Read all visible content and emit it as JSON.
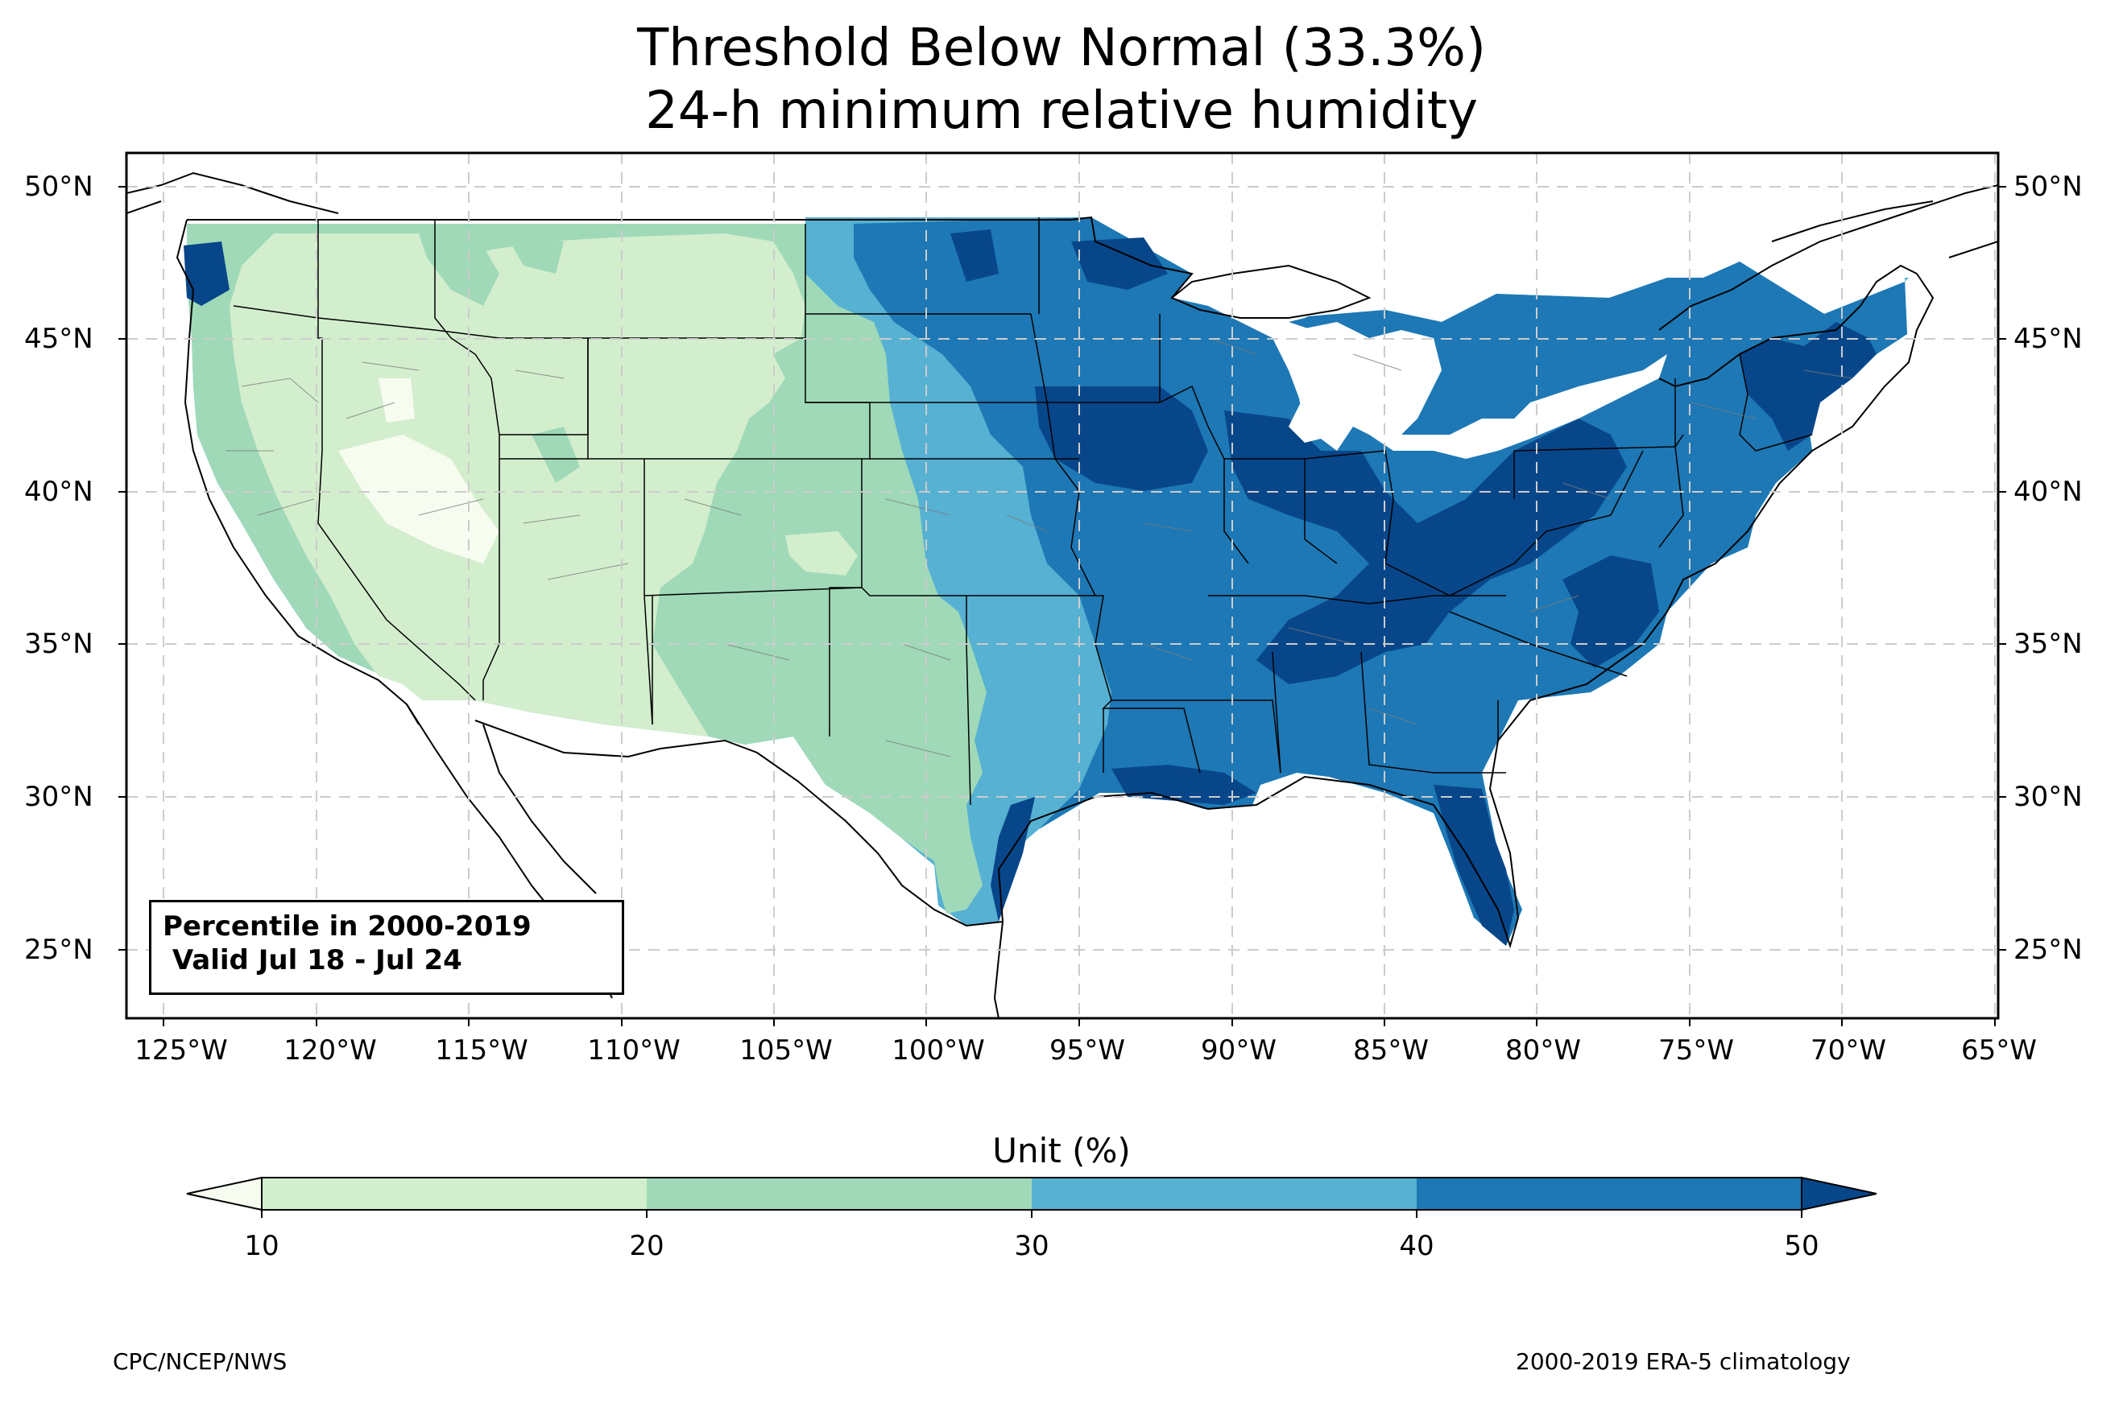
{
  "title": {
    "line1": "Threshold Below Normal (33.3%)",
    "line2": "24-h minimum relative humidity"
  },
  "map": {
    "region": "Contiguous United States",
    "lat_ticks": [
      "50°N",
      "45°N",
      "40°N",
      "35°N",
      "30°N",
      "25°N"
    ],
    "lat_values": [
      50,
      45,
      40,
      35,
      30,
      25
    ],
    "lon_ticks": [
      "125°W",
      "120°W",
      "115°W",
      "110°W",
      "105°W",
      "100°W",
      "95°W",
      "90°W",
      "85°W",
      "80°W",
      "75°W",
      "70°W",
      "65°W"
    ],
    "lon_values": [
      -125,
      -120,
      -115,
      -110,
      -105,
      -100,
      -95,
      -90,
      -85,
      -80,
      -75,
      -70,
      -65
    ],
    "lon_range": [
      -126.3,
      -64.9
    ],
    "lat_range": [
      22.7,
      51.1
    ],
    "gridlines": true,
    "colors": {
      "lt10": "#f7fcf0",
      "10-20": "#d3eecd",
      "20-30": "#9fd9b8",
      "30-40": "#56b1d2",
      "40-50": "#1d78b5",
      "gt50": "#08468a"
    }
  },
  "legend": {
    "line1": "Percentile in 2000-2019",
    "line2": " Valid Jul 18 - Jul 24"
  },
  "colorbar": {
    "unit_label": "Unit (%)",
    "ticks": [
      "10",
      "20",
      "30",
      "40",
      "50"
    ],
    "bins": [
      {
        "range": "<10",
        "color": "#f7fcf0"
      },
      {
        "range": "10-20",
        "color": "#d3eecd"
      },
      {
        "range": "20-30",
        "color": "#9fd9b8"
      },
      {
        "range": "30-40",
        "color": "#56b1d2"
      },
      {
        "range": "40-50",
        "color": "#1d78b5"
      },
      {
        "range": ">50",
        "color": "#08468a"
      }
    ]
  },
  "footer": {
    "left": "CPC/NCEP/NWS",
    "right": "2000-2019 ERA-5 climatology"
  }
}
